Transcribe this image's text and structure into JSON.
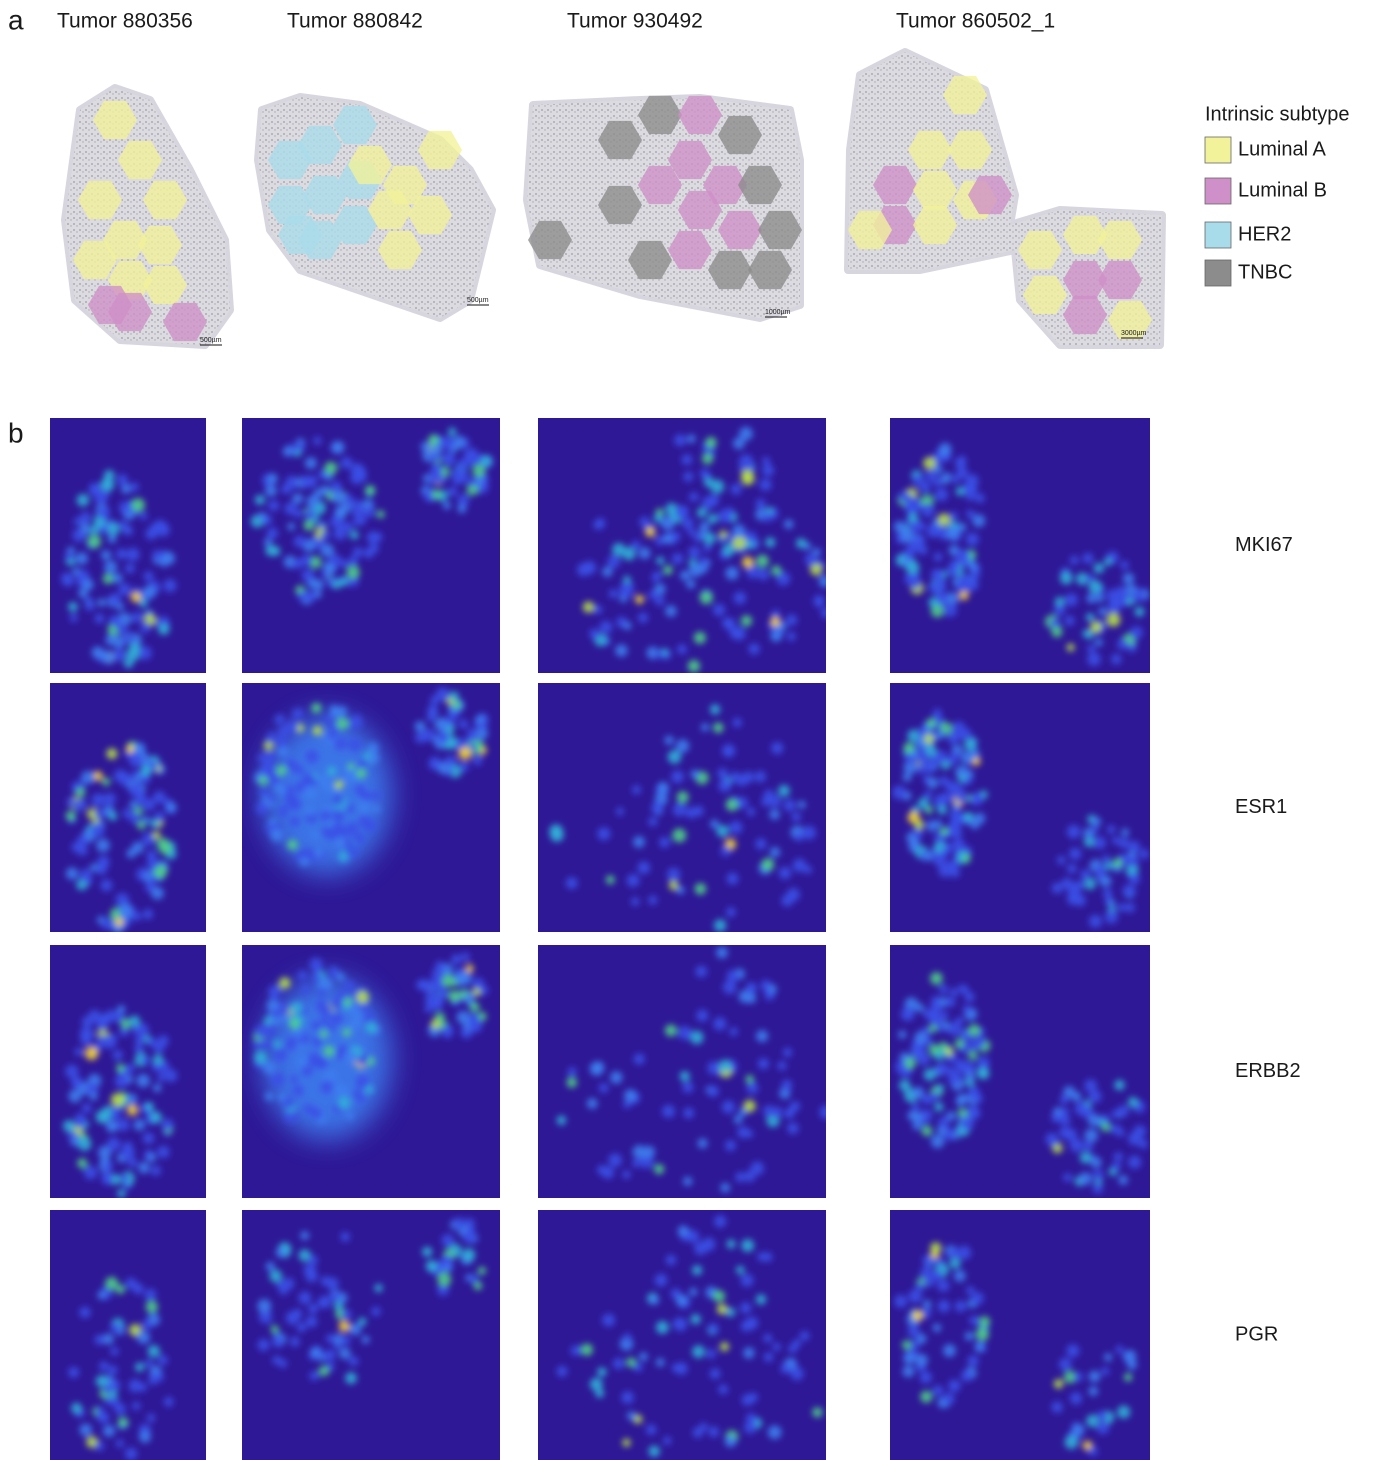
{
  "panel_a": {
    "label": "a",
    "tumors": [
      {
        "title": "Tumor 880356",
        "scale_bar": "500µm"
      },
      {
        "title": "Tumor 880842",
        "scale_bar": "500µm"
      },
      {
        "title": "Tumor 930492",
        "scale_bar": "1000µm"
      },
      {
        "title": "Tumor 860502_1",
        "scale_bar": "3000µm"
      }
    ]
  },
  "legend": {
    "title": "Intrinsic subtype",
    "items": [
      {
        "label": "Luminal A",
        "color": "#f2f29a"
      },
      {
        "label": "Luminal B",
        "color": "#cf8fc8"
      },
      {
        "label": "HER2",
        "color": "#a9dcea"
      },
      {
        "label": "TNBC",
        "color": "#8c8c8c"
      }
    ]
  },
  "panel_b": {
    "label": "b",
    "genes": [
      "MKI67",
      "ESR1",
      "ERBB2",
      "PGR"
    ]
  }
}
